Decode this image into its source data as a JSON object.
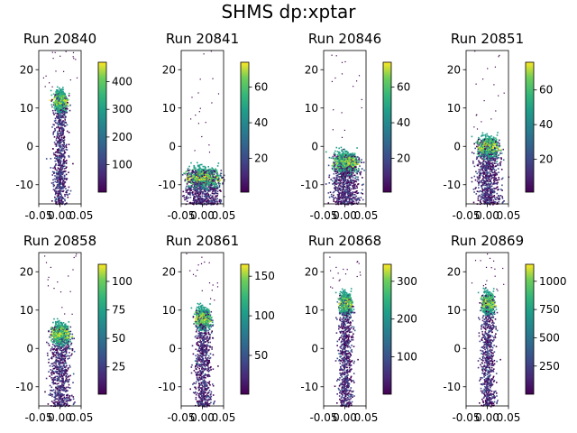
{
  "figure": {
    "title": "SHMS dp:xptar"
  },
  "chart_data": [
    {
      "type": "heatmap",
      "title": "Run 20840",
      "xlim": [
        -0.05,
        0.05
      ],
      "ylim": [
        -15,
        25
      ],
      "xticks": [
        "-0.05",
        "0.00",
        "0.05"
      ],
      "yticks": [
        "-10",
        "0",
        "10",
        "20"
      ],
      "colorbar": {
        "range": [
          1,
          470
        ],
        "ticks": [
          "100",
          "200",
          "300",
          "400"
        ]
      },
      "distribution": {
        "peak_x": 0.0,
        "peak_y": 12,
        "core_width_x": 0.015,
        "spread": "long tail from peak down to bottom edge"
      }
    },
    {
      "type": "heatmap",
      "title": "Run 20841",
      "xlim": [
        -0.05,
        0.05
      ],
      "ylim": [
        -15,
        25
      ],
      "xticks": [
        "-0.05",
        "0.00",
        "0.05"
      ],
      "yticks": [
        "-10",
        "0",
        "10",
        "20"
      ],
      "colorbar": {
        "range": [
          1,
          74
        ],
        "ticks": [
          "20",
          "40",
          "60"
        ]
      },
      "distribution": {
        "peak_x": 0.0,
        "peak_y": -8,
        "core_width_x": 0.04,
        "spread": "wide block near bottom"
      }
    },
    {
      "type": "heatmap",
      "title": "Run 20846",
      "xlim": [
        -0.05,
        0.05
      ],
      "ylim": [
        -15,
        25
      ],
      "xticks": [
        "-0.05",
        "0.00",
        "0.05"
      ],
      "yticks": [
        "-10",
        "0",
        "10",
        "20"
      ],
      "colorbar": {
        "range": [
          1,
          74
        ],
        "ticks": [
          "20",
          "40",
          "60"
        ]
      },
      "distribution": {
        "peak_x": 0.0,
        "peak_y": -4,
        "core_width_x": 0.03,
        "spread": "block between -4 and bottom"
      }
    },
    {
      "type": "heatmap",
      "title": "Run 20851",
      "xlim": [
        -0.05,
        0.05
      ],
      "ylim": [
        -15,
        25
      ],
      "xticks": [
        "-0.05",
        "0.00",
        "0.05"
      ],
      "yticks": [
        "-10",
        "0",
        "10",
        "20"
      ],
      "colorbar": {
        "range": [
          1,
          76
        ],
        "ticks": [
          "20",
          "40",
          "60"
        ]
      },
      "distribution": {
        "peak_x": 0.0,
        "peak_y": 0,
        "core_width_x": 0.025,
        "spread": "block from 2 down to bottom"
      }
    },
    {
      "type": "heatmap",
      "title": "Run 20858",
      "xlim": [
        -0.05,
        0.05
      ],
      "ylim": [
        -15,
        25
      ],
      "xticks": [
        "-0.05",
        "0.00",
        "0.05"
      ],
      "yticks": [
        "-10",
        "0",
        "10",
        "20"
      ],
      "colorbar": {
        "range": [
          1,
          115
        ],
        "ticks": [
          "25",
          "50",
          "75",
          "100"
        ]
      },
      "distribution": {
        "peak_x": 0.0,
        "peak_y": 4,
        "core_width_x": 0.022,
        "spread": "column from 6 down to bottom"
      }
    },
    {
      "type": "heatmap",
      "title": "Run 20861",
      "xlim": [
        -0.05,
        0.05
      ],
      "ylim": [
        -15,
        25
      ],
      "xticks": [
        "-0.05",
        "0.00",
        "0.05"
      ],
      "yticks": [
        "-10",
        "0",
        "10",
        "20"
      ],
      "colorbar": {
        "range": [
          1,
          165
        ],
        "ticks": [
          "50",
          "100",
          "150"
        ]
      },
      "distribution": {
        "peak_x": 0.0,
        "peak_y": 8,
        "core_width_x": 0.018,
        "spread": "column from 9 down to bottom"
      }
    },
    {
      "type": "heatmap",
      "title": "Run 20868",
      "xlim": [
        -0.05,
        0.05
      ],
      "ylim": [
        -15,
        25
      ],
      "xticks": [
        "-0.05",
        "0.00",
        "0.05"
      ],
      "yticks": [
        "-10",
        "0",
        "10",
        "20"
      ],
      "colorbar": {
        "range": [
          1,
          345
        ],
        "ticks": [
          "100",
          "200",
          "300"
        ]
      },
      "distribution": {
        "peak_x": 0.0,
        "peak_y": 12,
        "core_width_x": 0.015,
        "spread": "narrow column from 13 down to bottom"
      }
    },
    {
      "type": "heatmap",
      "title": "Run 20869",
      "xlim": [
        -0.05,
        0.05
      ],
      "ylim": [
        -15,
        25
      ],
      "xticks": [
        "-0.05",
        "0.00",
        "0.05"
      ],
      "yticks": [
        "-10",
        "0",
        "10",
        "20"
      ],
      "colorbar": {
        "range": [
          1,
          1150
        ],
        "ticks": [
          "250",
          "500",
          "750",
          "1000"
        ]
      },
      "distribution": {
        "peak_x": 0.0,
        "peak_y": 12,
        "core_width_x": 0.015,
        "spread": "wide column from 13 down to bottom"
      }
    }
  ]
}
